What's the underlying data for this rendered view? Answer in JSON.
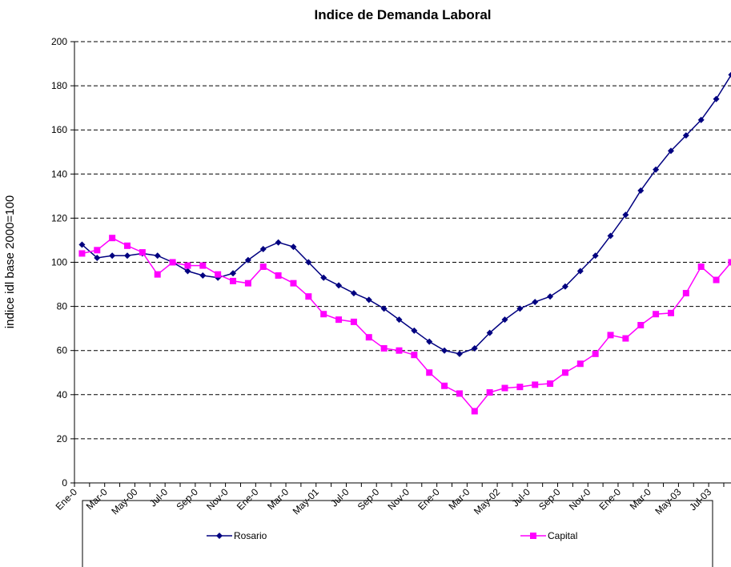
{
  "chart_data": {
    "type": "line",
    "title": "Indice de Demanda Laboral",
    "y_label": "indice idl base 2000=100",
    "categories": [
      "Ene-0",
      null,
      "Mar-0",
      null,
      "May-00",
      null,
      "Jul-0",
      null,
      "Sep-0",
      null,
      "Nov-0",
      null,
      "Ene-0",
      null,
      "Mar-0",
      null,
      "May-01",
      null,
      "Jul-0",
      null,
      "Sep-0",
      null,
      "Nov-0",
      null,
      "Ene-0",
      null,
      "Mar-0",
      null,
      "May-02",
      null,
      "Jul-0",
      null,
      "Sep-0",
      null,
      "Nov-0",
      null,
      "Ene-0",
      null,
      "Mar-0",
      null,
      "May-03",
      null,
      "Jul-03",
      null
    ],
    "series": [
      {
        "name": "Rosario",
        "color": "#000080",
        "marker": "diamond",
        "values": [
          108,
          102,
          103,
          103,
          104,
          103,
          100,
          96,
          94,
          93,
          95,
          101,
          106,
          109,
          107,
          100,
          93,
          89.5,
          86,
          83,
          79,
          74,
          69,
          64,
          60,
          58.5,
          61,
          68,
          74,
          79,
          82,
          84.5,
          89,
          96,
          103,
          112,
          121.5,
          132.5,
          142,
          150.5,
          157.5,
          164.5,
          174,
          185
        ]
      },
      {
        "name": "Capital",
        "color": "#ff00ff",
        "marker": "square",
        "values": [
          104,
          105.5,
          111,
          107.5,
          104.5,
          94.5,
          100,
          98.5,
          98.5,
          94.5,
          91.5,
          90.5,
          98,
          94,
          90.5,
          84.5,
          76.5,
          74,
          73,
          66,
          61,
          60,
          58,
          50,
          44,
          40.5,
          32.5,
          41,
          43,
          43.5,
          44.5,
          45,
          50,
          54,
          58.5,
          67,
          65.5,
          71.5,
          76.5,
          77,
          86,
          98,
          92,
          100
        ]
      }
    ],
    "ylim": [
      0,
      200
    ],
    "yticks": [
      0,
      20,
      40,
      60,
      80,
      100,
      120,
      140,
      160,
      180,
      200
    ],
    "grid": true,
    "legend": "bottom"
  }
}
